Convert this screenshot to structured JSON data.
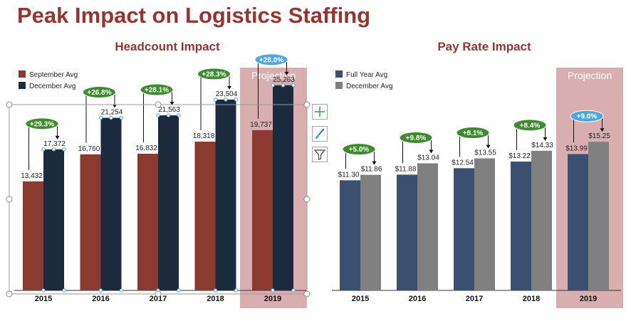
{
  "title": "Peak Impact on Logistics Staffing",
  "colors": {
    "title": "#96352f",
    "september": "#8b3a30",
    "december_hc": "#1b2a3c",
    "full_year": "#3b4f70",
    "december_pr": "#808080",
    "projection_bg": "#d8aeb0",
    "badge_green": "#3e8a2f",
    "badge_blue": "#4ea6dc"
  },
  "projection_label": "Projection",
  "toolbar": {
    "add_icon": "plus-icon",
    "style_icon": "brush-icon",
    "filter_icon": "filter-icon"
  },
  "chart_data": [
    {
      "type": "bar",
      "title": "Headcount Impact",
      "categories": [
        "2015",
        "2016",
        "2017",
        "2018",
        "2019"
      ],
      "series": [
        {
          "name": "September Avg",
          "values": [
            13432,
            16760,
            16832,
            18318,
            19737
          ]
        },
        {
          "name": "December Avg",
          "values": [
            17372,
            21254,
            21563,
            23504,
            25263
          ]
        }
      ],
      "value_labels": [
        [
          "13,432",
          "16,760",
          "16,832",
          "18,318",
          "19,737"
        ],
        [
          "17,372",
          "21,254",
          "21,563",
          "23,504",
          "25,263"
        ]
      ],
      "increase_labels": [
        "+29.3%",
        "+26.8%",
        "+28.1%",
        "+28.3%",
        "+28.0%"
      ],
      "projection_category": "2019",
      "legend_position": "top-left",
      "ylim": [
        0,
        27000
      ],
      "grid": false
    },
    {
      "type": "bar",
      "title": "Pay Rate Impact",
      "categories": [
        "2015",
        "2016",
        "2017",
        "2018",
        "2019"
      ],
      "series": [
        {
          "name": "Full Year Avg",
          "values": [
            11.3,
            11.88,
            12.54,
            13.22,
            13.99
          ]
        },
        {
          "name": "December Avg",
          "values": [
            11.86,
            13.04,
            13.55,
            14.33,
            15.25
          ]
        }
      ],
      "value_labels": [
        [
          "$11.30",
          "$11.88",
          "$12.54",
          "$13.22",
          "$13.99"
        ],
        [
          "$11.86",
          "$13.04",
          "$13.55",
          "$14.33",
          "$15.25"
        ]
      ],
      "increase_labels": [
        "+5.0%",
        "+9.8%",
        "+8.1%",
        "+8.4%",
        "+9.0%"
      ],
      "projection_category": "2019",
      "legend_position": "top-left",
      "ylim": [
        0,
        22.5
      ],
      "grid": false
    }
  ]
}
